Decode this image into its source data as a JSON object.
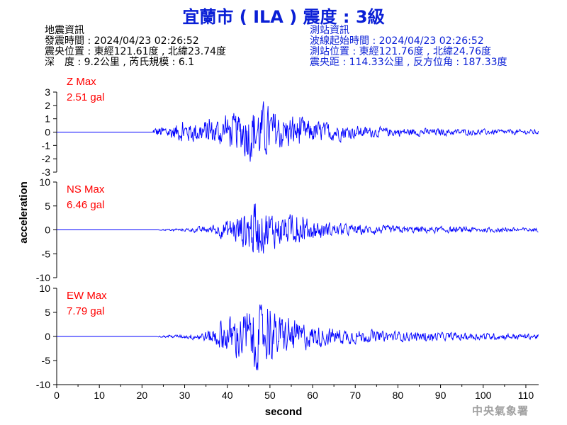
{
  "header": {
    "title": "宜蘭市 ( ILA ) 震度 : 3級"
  },
  "quake_info": {
    "heading": "地震資訊",
    "origin_time": "發震時間 : 2024/04/23 02:26:52",
    "epicenter": "震央位置 : 東經121.61度 , 北緯23.74度",
    "depth_magnitude": "深　度 : 9.2公里 , 芮氏規模 : 6.1"
  },
  "station_info": {
    "heading": "測站資訊",
    "wave_start": "波線起始時間 : 2024/04/23 02:26:52",
    "location": "測站位置 : 東經121.76度 , 北緯24.76度",
    "distance": "震央距 : 114.33公里 , 反方位角 : 187.33度"
  },
  "footer": {
    "agency": "中央氣象署"
  },
  "colors": {
    "trace": "#0000ff",
    "title": "#0a1fd6",
    "max_label": "#ff0000"
  },
  "chart_data": {
    "type": "line",
    "xlabel": "second",
    "ylabel": "acceleration",
    "xlim": [
      0,
      113
    ],
    "xticks": [
      0,
      10,
      20,
      30,
      40,
      50,
      60,
      70,
      80,
      90,
      100,
      110
    ],
    "series": [
      {
        "name": "Z",
        "max_label": "Z Max",
        "max_value": "2.51 gal",
        "ylim": [
          -3,
          3
        ],
        "yticks": [
          3,
          2,
          1,
          0,
          -1,
          -2,
          -3
        ],
        "envelope": [
          [
            0,
            0
          ],
          [
            22.5,
            0
          ],
          [
            23,
            0.35
          ],
          [
            30,
            0.7
          ],
          [
            38,
            1.0
          ],
          [
            42,
            1.3
          ],
          [
            45,
            2.0
          ],
          [
            47,
            2.2
          ],
          [
            50,
            1.7
          ],
          [
            54,
            1.2
          ],
          [
            60,
            0.8
          ],
          [
            66,
            0.6
          ],
          [
            72,
            0.4
          ],
          [
            80,
            0.3
          ],
          [
            90,
            0.25
          ],
          [
            100,
            0.2
          ],
          [
            113,
            0.18
          ]
        ]
      },
      {
        "name": "NS",
        "max_label": "NS Max",
        "max_value": "6.46 gal",
        "ylim": [
          -10,
          10
        ],
        "yticks": [
          10,
          5,
          0,
          -5,
          -10
        ],
        "envelope": [
          [
            0,
            0
          ],
          [
            23.5,
            0
          ],
          [
            24,
            0.1
          ],
          [
            30,
            0.3
          ],
          [
            36,
            0.8
          ],
          [
            40,
            2.0
          ],
          [
            43,
            3.5
          ],
          [
            46,
            5.2
          ],
          [
            48,
            4.5
          ],
          [
            52,
            3.2
          ],
          [
            58,
            2.4
          ],
          [
            62,
            1.6
          ],
          [
            68,
            1.1
          ],
          [
            75,
            0.8
          ],
          [
            85,
            0.7
          ],
          [
            100,
            0.5
          ],
          [
            113,
            0.4
          ]
        ]
      },
      {
        "name": "EW",
        "max_label": "EW Max",
        "max_value": "7.79 gal",
        "ylim": [
          -10,
          10
        ],
        "yticks": [
          10,
          5,
          0,
          -5,
          -10
        ],
        "envelope": [
          [
            0,
            0
          ],
          [
            23.5,
            0
          ],
          [
            24,
            0.15
          ],
          [
            30,
            0.4
          ],
          [
            35,
            1.0
          ],
          [
            40,
            3.5
          ],
          [
            43,
            4.8
          ],
          [
            47,
            6.0
          ],
          [
            50,
            4.8
          ],
          [
            54,
            3.5
          ],
          [
            60,
            2.2
          ],
          [
            66,
            1.6
          ],
          [
            72,
            1.2
          ],
          [
            80,
            1.0
          ],
          [
            90,
            0.8
          ],
          [
            100,
            0.7
          ],
          [
            113,
            0.5
          ]
        ]
      }
    ]
  }
}
